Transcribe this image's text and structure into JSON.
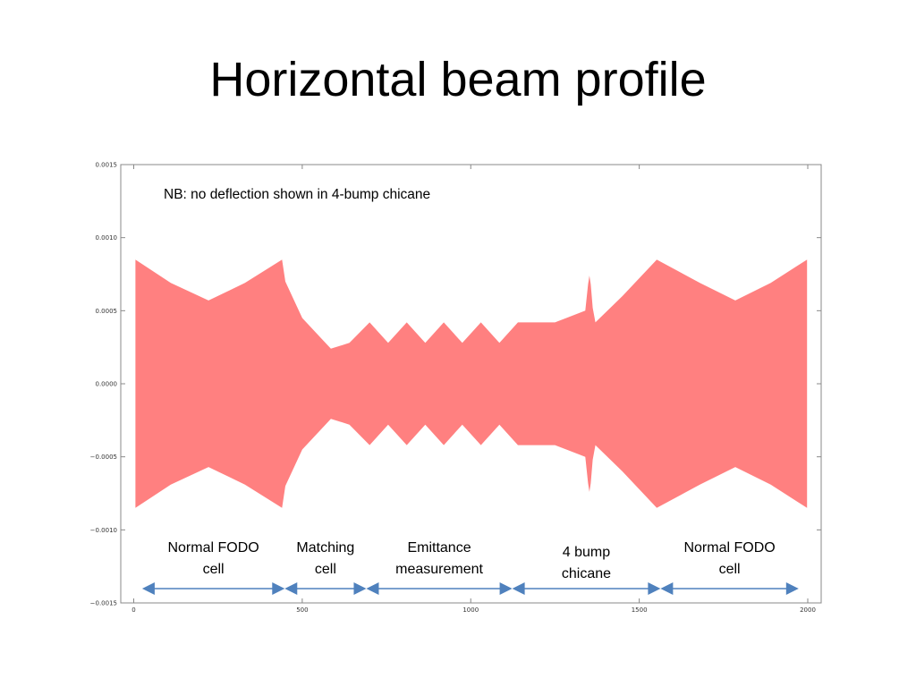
{
  "slide": {
    "title": "Horizontal beam profile"
  },
  "colors": {
    "envelope": "#ff8080",
    "arrow": "#4f81bd",
    "frame": "#888888"
  },
  "chart_data": {
    "type": "area",
    "title": "",
    "xlabel": "",
    "ylabel": "",
    "xlim": [
      0,
      2000
    ],
    "ylim": [
      -0.0015,
      0.0015
    ],
    "x_ticks": [
      0,
      500,
      1000,
      1500,
      2000
    ],
    "x_tick_labels": [
      "0",
      "500",
      "1000",
      "1500",
      "2000"
    ],
    "y_ticks": [
      0.0015,
      0.001,
      0.0005,
      0.0,
      -0.0005,
      -0.001,
      -0.0015
    ],
    "y_tick_labels": [
      "0.0015",
      "0.0010",
      "0.0005",
      "0.0000",
      "−0.0005",
      "−0.0010",
      "−0.0015"
    ],
    "grid": false,
    "series": [
      {
        "x": [
          5,
          110,
          222,
          330,
          440,
          450,
          500,
          585,
          640,
          700,
          755,
          810,
          865,
          920,
          975,
          1030,
          1085,
          1140,
          1250,
          1340,
          1348,
          1352,
          1356,
          1362,
          1370,
          1450,
          1552,
          1680,
          1785,
          1890,
          1998
        ],
        "upper": [
          0.00085,
          0.00069,
          0.00057,
          0.00069,
          0.00085,
          0.0007,
          0.00045,
          0.00024,
          0.00028,
          0.00042,
          0.00028,
          0.00042,
          0.00028,
          0.00042,
          0.00028,
          0.00042,
          0.00028,
          0.00042,
          0.00042,
          0.0005,
          0.00068,
          0.00074,
          0.00068,
          0.00052,
          0.00042,
          0.0006,
          0.00085,
          0.00069,
          0.00057,
          0.00069,
          0.00085
        ]
      }
    ],
    "envelope_symmetric": true,
    "annotations": [
      {
        "text": "NB: no deflection shown in 4-bump chicane"
      }
    ],
    "segments": [
      {
        "label_lines": [
          "Normal FODO",
          "cell"
        ],
        "x_start": 25,
        "x_end": 448
      },
      {
        "label_lines": [
          "Matching",
          "cell"
        ],
        "x_start": 448,
        "x_end": 690
      },
      {
        "label_lines": [
          "Emittance",
          "measurement"
        ],
        "x_start": 690,
        "x_end": 1123
      },
      {
        "label_lines": [
          "4 bump",
          "chicane"
        ],
        "x_start": 1123,
        "x_end": 1563
      },
      {
        "label_lines": [
          "Normal FODO",
          "cell"
        ],
        "x_start": 1563,
        "x_end": 1973
      }
    ]
  }
}
